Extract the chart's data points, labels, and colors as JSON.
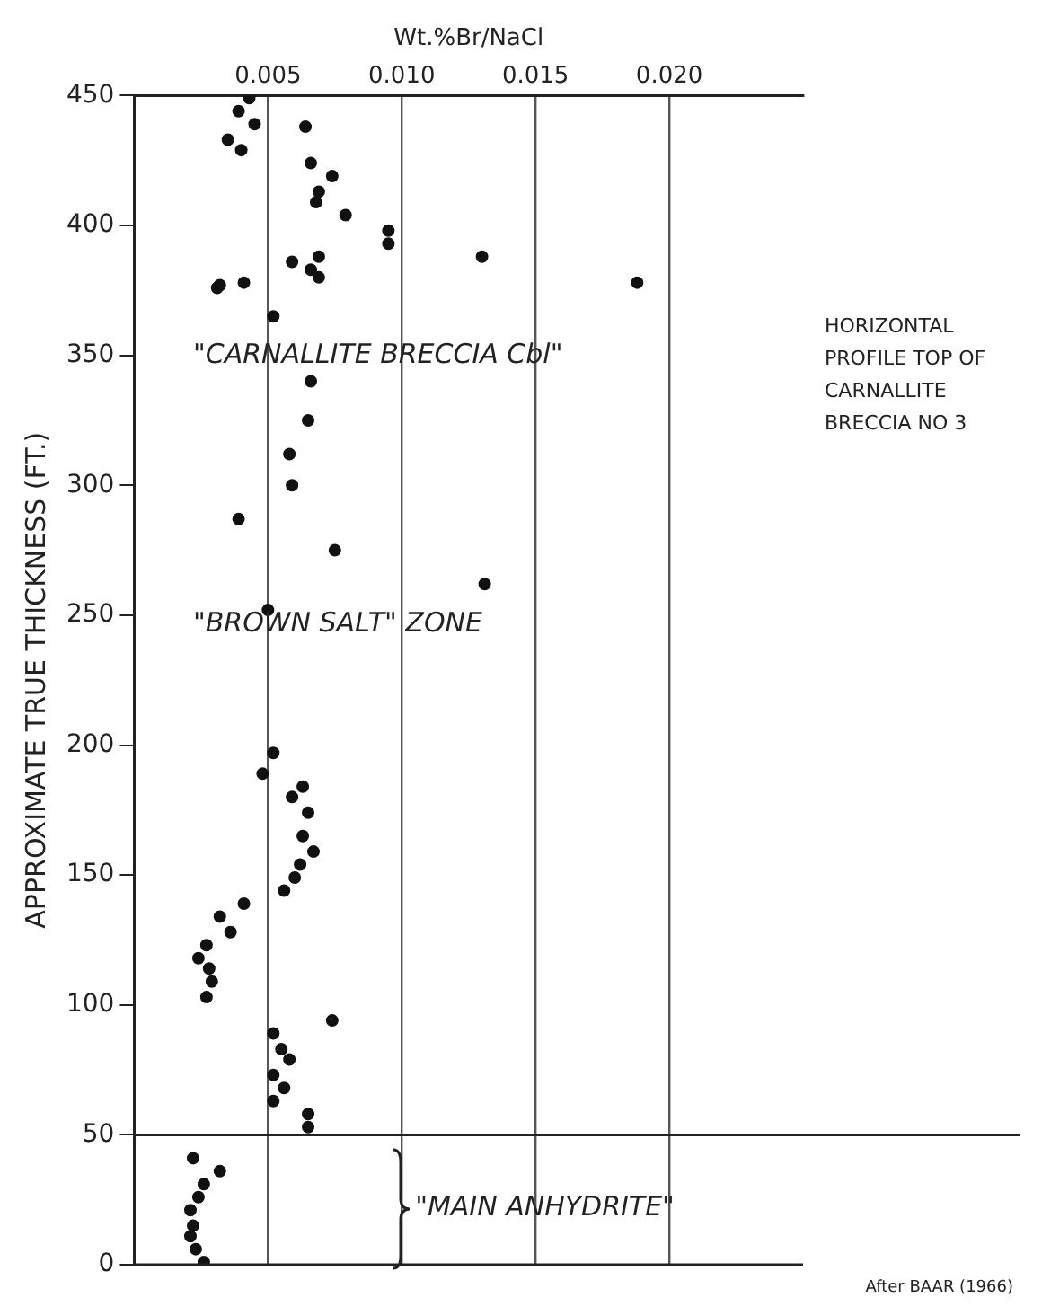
{
  "chart_data": {
    "type": "scatter",
    "xlabel": "Wt.%Br/NaCl",
    "ylabel": "APPROXIMATE TRUE THICKNESS (FT.)",
    "xlim": [
      0,
      0.025
    ],
    "xticks": [
      0.005,
      {
        "value": 0.01,
        "label": "0.010"
      },
      0.015,
      {
        "value": 0.02,
        "label": "0.020"
      }
    ],
    "ylim": [
      0,
      450
    ],
    "yticks": [
      0,
      50,
      100,
      150,
      200,
      250,
      300,
      350,
      400,
      450
    ],
    "grid": "x",
    "marker": "circle",
    "legend": false,
    "ref_lines": [
      {
        "axis": "y",
        "value": 50
      }
    ],
    "series": [
      {
        "color": "#111111",
        "x": [
          0.0043,
          0.0039,
          0.0045,
          0.0035,
          0.004,
          0.0064,
          0.0066,
          0.0074,
          0.0069,
          0.0068,
          0.0079,
          0.0095,
          0.0095,
          0.013,
          0.0069,
          0.0059,
          0.0066,
          0.0069,
          0.0032,
          0.0031,
          0.0041,
          0.0188,
          0.0052,
          0.0066,
          0.0065,
          0.0058,
          0.0059,
          0.0039,
          0.0075,
          0.0131,
          0.005,
          0.0052,
          0.0048,
          0.0063,
          0.0059,
          0.0065,
          0.0063,
          0.0067,
          0.0062,
          0.006,
          0.0056,
          0.0041,
          0.0032,
          0.0036,
          0.0027,
          0.0024,
          0.0028,
          0.0029,
          0.0027,
          0.0074,
          0.0052,
          0.0055,
          0.0058,
          0.0052,
          0.0056,
          0.0052,
          0.0065,
          0.0065,
          0.0022,
          0.0032,
          0.0026,
          0.0024,
          0.0021,
          0.0022,
          0.0021,
          0.0023,
          0.0026
        ],
        "values": [
          449,
          444,
          439,
          433,
          429,
          438,
          424,
          419,
          413,
          409,
          404,
          398,
          393,
          388,
          388,
          386,
          383,
          380,
          377,
          376,
          378,
          378,
          365,
          340,
          325,
          312,
          300,
          287,
          275,
          262,
          252,
          197,
          189,
          184,
          180,
          174,
          165,
          159,
          154,
          149,
          144,
          139,
          134,
          128,
          123,
          118,
          114,
          109,
          103,
          94,
          89,
          83,
          79,
          73,
          68,
          63,
          58,
          53,
          41,
          36,
          31,
          26,
          21,
          15,
          11,
          6,
          1
        ]
      }
    ],
    "annotations": [
      "\"CARNALLITE BRECCIA Cbl\"",
      "\"BROWN SALT\" ZONE",
      "\"MAIN ANHYDRITE\"",
      "HORIZONTAL PROFILE TOP OF CARNALLITE BRECCIA NO 3",
      "After BAAR (1966)"
    ]
  }
}
